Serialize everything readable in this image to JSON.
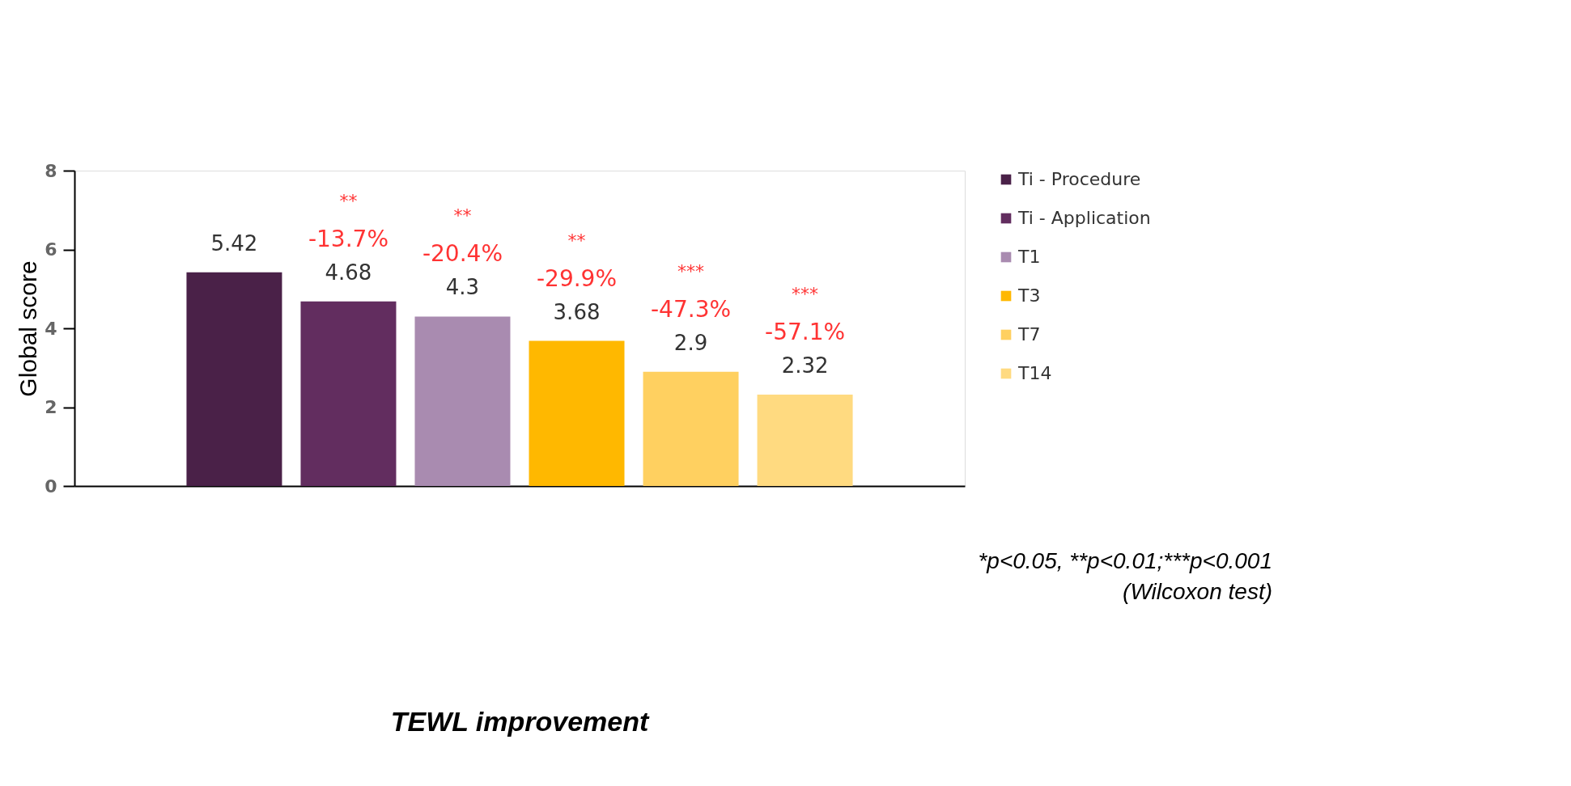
{
  "chart_data": {
    "type": "bar",
    "title": "TEWL improvement",
    "ylabel": "Global score",
    "categories": [
      null
    ],
    "series": [
      {
        "name": "Ti - Procedure",
        "color": "#4a2148",
        "values": [
          5.42
        ]
      },
      {
        "name": "Ti - Application",
        "color": "#622d5f",
        "values": [
          4.68
        ]
      },
      {
        "name": "T1",
        "color": "#a98bb0",
        "values": [
          4.3
        ]
      },
      {
        "name": "T3",
        "color": "#ffb800",
        "values": [
          3.68
        ]
      },
      {
        "name": "T7",
        "color": "#ffd060",
        "values": [
          2.9
        ]
      },
      {
        "name": "T14",
        "color": "#ffda80",
        "values": [
          2.32
        ]
      }
    ],
    "ylim": [
      0,
      8
    ],
    "yticks": [
      0,
      2,
      4,
      6,
      8
    ],
    "grid": false,
    "legend": "right",
    "tick_labels": "y",
    "data_labels": true,
    "annotations": [
      {
        "text": "-13.7%",
        "y": 4.68
      },
      "**",
      {
        "text": "-20.4%",
        "y": 4.3
      },
      "**",
      {
        "text": "-29.9%",
        "y": 3.68
      },
      "**",
      {
        "text": "-47.3%",
        "y": 2.9
      },
      "***",
      {
        "text": "-57.1%",
        "y": 2.32
      },
      "***",
      "*p<0.05, **p<0.01;***p<0.001",
      "(Wilcoxon test)"
    ]
  }
}
